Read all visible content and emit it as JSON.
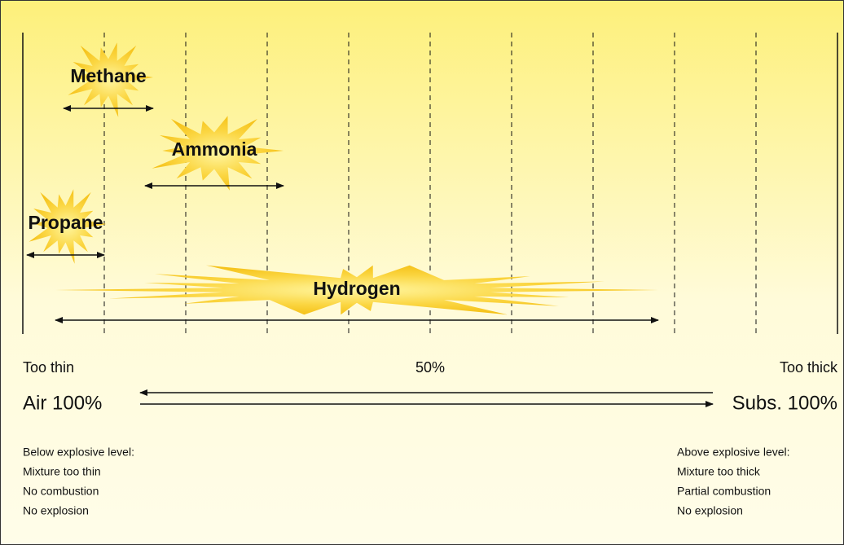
{
  "gases": [
    {
      "name": "Methane",
      "range": [
        5,
        16
      ]
    },
    {
      "name": "Ammonia",
      "range": [
        15,
        32
      ]
    },
    {
      "name": "Propane",
      "range": [
        0.5,
        10
      ]
    },
    {
      "name": "Hydrogen",
      "range": [
        4,
        78
      ]
    }
  ],
  "scale": {
    "ticks": [
      0,
      10,
      20,
      30,
      40,
      50,
      60,
      70,
      80,
      90,
      100
    ]
  },
  "labels": {
    "too_thin": "Too thin",
    "midpoint": "50%",
    "too_thick": "Too thick",
    "air": "Air 100%",
    "substance": "Subs. 100%"
  },
  "notes": {
    "below": [
      "Below explosive level:",
      "Mixture too thin",
      "No combustion",
      "No explosion"
    ],
    "above": [
      "Above explosive level:",
      "Mixture too thick",
      "Partial combustion",
      "No explosion"
    ]
  }
}
